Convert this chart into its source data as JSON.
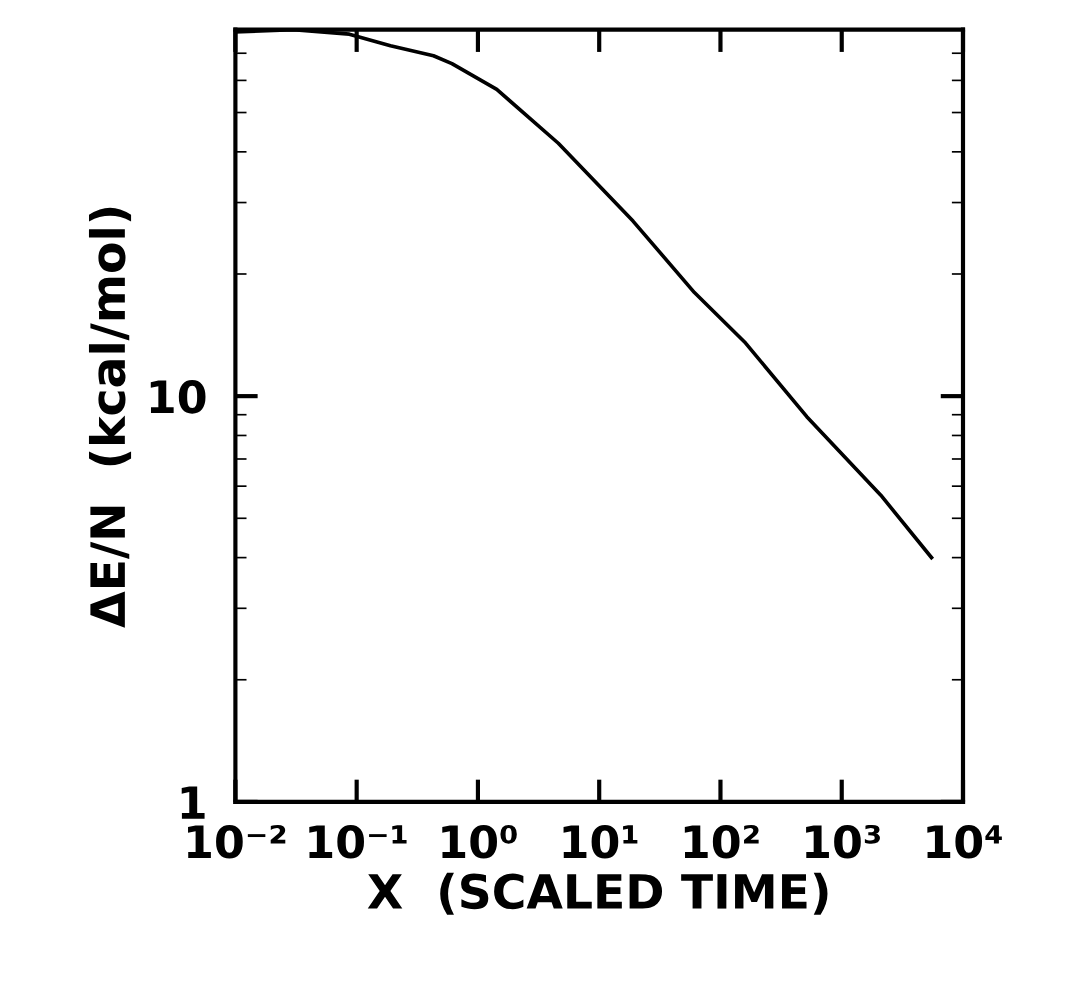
{
  "chart_data": {
    "type": "line",
    "xlabel": "X  (SCALED TIME)",
    "ylabel": "ΔE/N  (kcal/mol)",
    "log": "xy",
    "xlim": [
      0.01,
      10000
    ],
    "ylim": [
      1,
      80
    ],
    "xticks": [
      {
        "value": 0.01,
        "label": "10⁻²"
      },
      {
        "value": 0.1,
        "label": "10⁻¹"
      },
      {
        "value": 1,
        "label": "10⁰"
      },
      {
        "value": 10,
        "label": "10¹"
      },
      {
        "value": 100,
        "label": "10²"
      },
      {
        "value": 1000,
        "label": "10³"
      },
      {
        "value": 10000,
        "label": "10⁴"
      }
    ],
    "yticks": [
      1,
      10
    ],
    "grid": false,
    "legend": false,
    "marker": "none",
    "line_style": "solid",
    "series": [
      {
        "color": "#000000",
        "x": [
          0.01,
          0.03,
          0.087,
          0.19,
          0.43,
          0.61,
          1.43,
          4.6,
          19,
          61,
          158,
          515,
          2100,
          5500
        ],
        "values": [
          79,
          80,
          78,
          73,
          69,
          66,
          57,
          42,
          27,
          18,
          13.6,
          8.9,
          5.7,
          4.0
        ]
      }
    ]
  }
}
